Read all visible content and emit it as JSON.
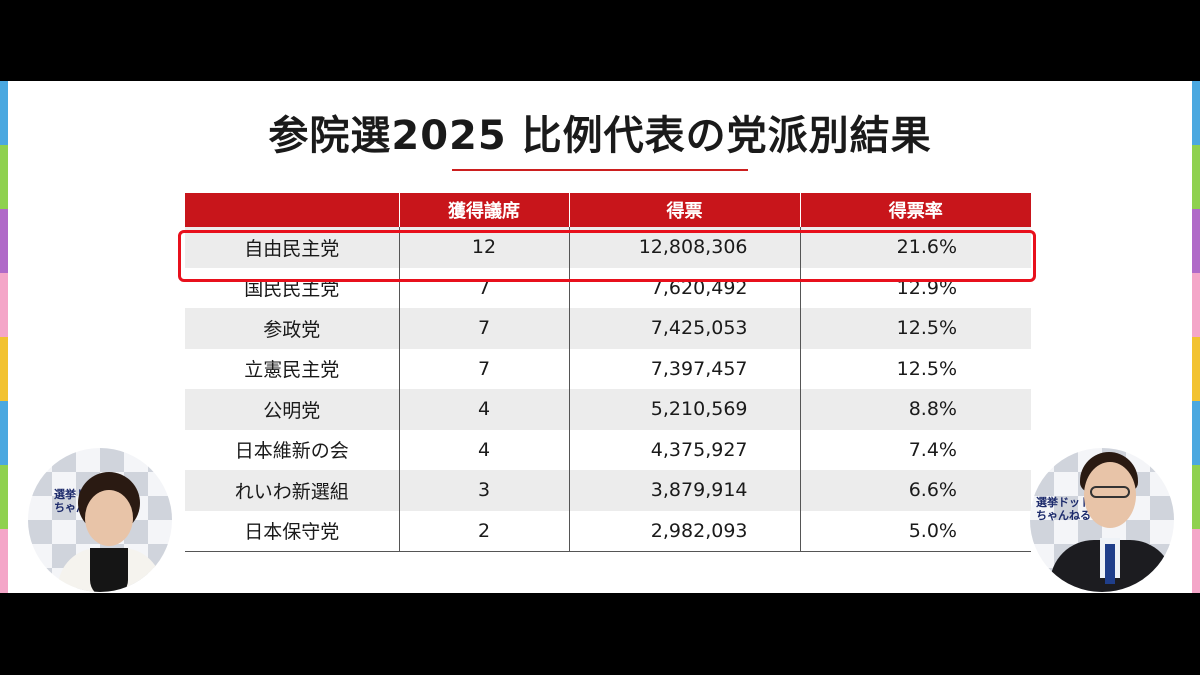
{
  "slide": {
    "title": "参院選2025 比例代表の党派別結果",
    "accent_color": "#c8151b",
    "highlight_color": "#e8101c"
  },
  "table": {
    "headers": [
      "",
      "獲得議席",
      "得票",
      "得票率"
    ],
    "rows": [
      {
        "party": "自由民主党",
        "seats": "12",
        "votes": "12,808,306",
        "rate": "21.6%",
        "highlighted": true
      },
      {
        "party": "国民民主党",
        "seats": "7",
        "votes": "7,620,492",
        "rate": "12.9%"
      },
      {
        "party": "参政党",
        "seats": "7",
        "votes": "7,425,053",
        "rate": "12.5%"
      },
      {
        "party": "立憲民主党",
        "seats": "7",
        "votes": "7,397,457",
        "rate": "12.5%"
      },
      {
        "party": "公明党",
        "seats": "4",
        "votes": "5,210,569",
        "rate": "8.8%"
      },
      {
        "party": "日本維新の会",
        "seats": "4",
        "votes": "4,375,927",
        "rate": "7.4%"
      },
      {
        "party": "れいわ新選組",
        "seats": "3",
        "votes": "3,879,914",
        "rate": "6.6%"
      },
      {
        "party": "日本保守党",
        "seats": "2",
        "votes": "2,982,093",
        "rate": "5.0%"
      }
    ]
  },
  "stripe_colors": [
    "#4aa8e0",
    "#8fd14f",
    "#b06ac8",
    "#f4a6c8",
    "#f2c230",
    "#4aa8e0",
    "#8fd14f",
    "#f4a6c8"
  ],
  "webcams": {
    "left": {
      "logo_line1": "選挙ドットコム",
      "logo_line2": "ちゃんねる"
    },
    "right": {
      "logo_line1": "選挙ドット",
      "logo_line2": "ちゃんねる"
    }
  }
}
